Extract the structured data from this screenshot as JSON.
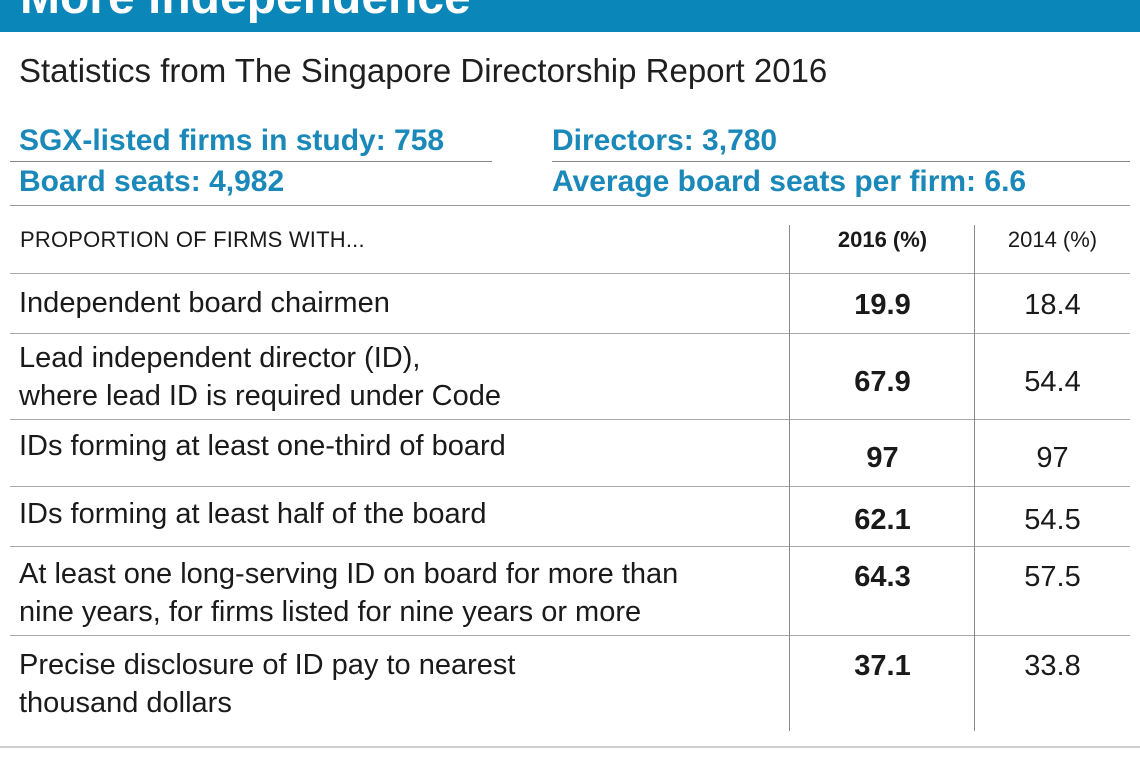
{
  "header": {
    "title": "More independence"
  },
  "subtitle": "Statistics from The Singapore Directorship Report 2016",
  "stats": {
    "firms": "SGX-listed firms in study: 758",
    "directors": "Directors: 3,780",
    "board_seats": "Board seats: 4,982",
    "avg_seats": "Average board seats per firm: 6.6"
  },
  "table": {
    "columns": {
      "label": "PROPORTION OF FIRMS WITH...",
      "y2016": "2016 (%)",
      "y2014": "2014 (%)"
    },
    "rows": [
      {
        "label_line1": "Independent board chairmen",
        "label_line2": "",
        "v2016": "19.9",
        "v2014": "18.4"
      },
      {
        "label_line1": "Lead independent director (ID),",
        "label_line2": "where lead ID is required under Code",
        "v2016": "67.9",
        "v2014": "54.4"
      },
      {
        "label_line1": "IDs forming at least one-third of board",
        "label_line2": "",
        "v2016": "97",
        "v2014": "97"
      },
      {
        "label_line1": "IDs forming at least half of the board",
        "label_line2": "",
        "v2016": "62.1",
        "v2014": "54.5"
      },
      {
        "label_line1": "At least one long-serving ID on board for more than",
        "label_line2": "nine years, for firms listed for nine years or more",
        "v2016": "64.3",
        "v2014": "57.5"
      },
      {
        "label_line1": "Precise disclosure of ID pay to nearest",
        "label_line2": "thousand dollars",
        "v2016": "37.1",
        "v2014": "33.8"
      }
    ]
  }
}
